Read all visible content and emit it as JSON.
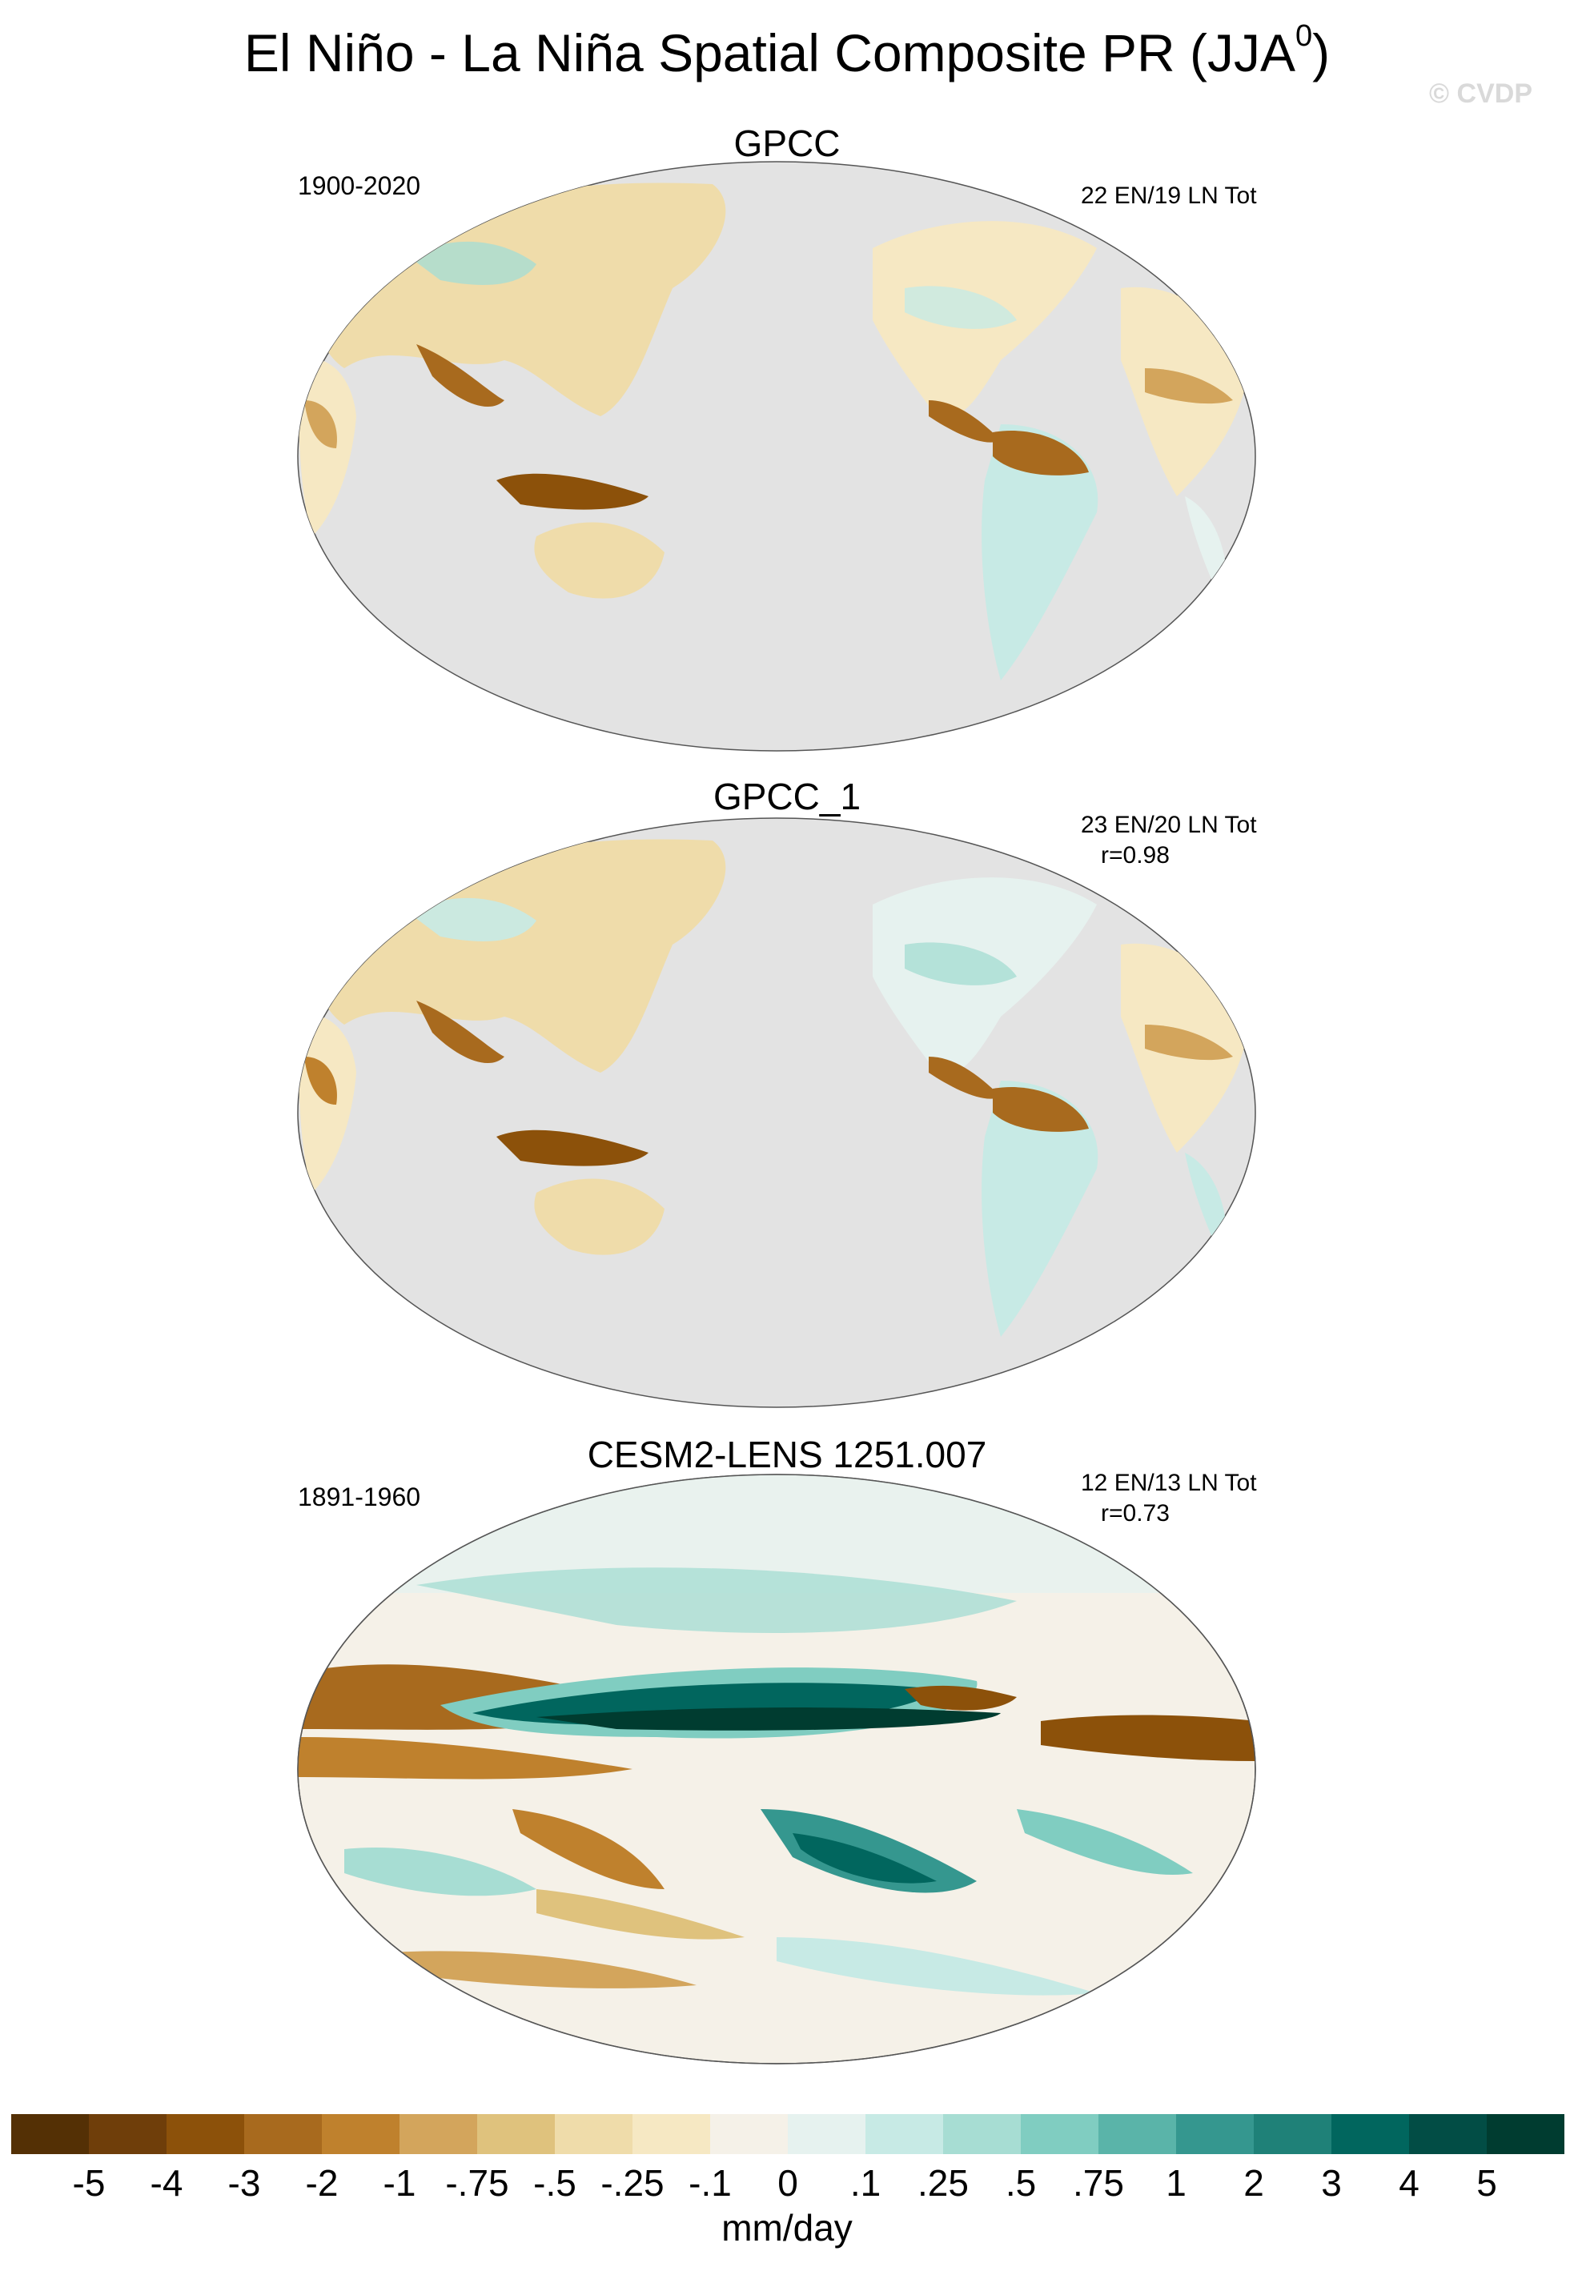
{
  "title": "El Niño - La Niña Spatial Composite PR (JJA",
  "title_sup": "0",
  "title_end": ")",
  "watermark": "© CVDP",
  "panels": [
    {
      "title": "GPCC",
      "period": "1900-2020",
      "stats": "22 EN/19 LN Tot",
      "corr": ""
    },
    {
      "title": "GPCC_1",
      "period": "",
      "stats": "23 EN/20 LN Tot",
      "corr": "r=0.98"
    },
    {
      "title": "CESM2-LENS 1251.007",
      "period": "1891-1960",
      "stats": "12 EN/13 LN Tot",
      "corr": "r=0.73"
    }
  ],
  "colorbar": {
    "colors": [
      "#543005",
      "#6f3e0a",
      "#8c510a",
      "#a86a1e",
      "#bf812d",
      "#d3a55c",
      "#dfc27d",
      "#efdcaa",
      "#f6e8c3",
      "#f5f1e8",
      "#e6f2ef",
      "#c7eae5",
      "#a7ddd3",
      "#80cdc1",
      "#5ab4a9",
      "#35978f",
      "#1f8178",
      "#01665e",
      "#024d45",
      "#003c30"
    ],
    "ticks": [
      "-5",
      "-4",
      "-3",
      "-2",
      "-1",
      "-.75",
      "-.5",
      "-.25",
      "-.1",
      "0",
      ".1",
      ".25",
      ".5",
      ".75",
      "1",
      "2",
      "3",
      "4",
      "5"
    ],
    "units": "mm/day"
  },
  "colors": {
    "ocean_masked": "#e3e3e3",
    "brown": "#a86a1e",
    "teal": "#35978f"
  }
}
